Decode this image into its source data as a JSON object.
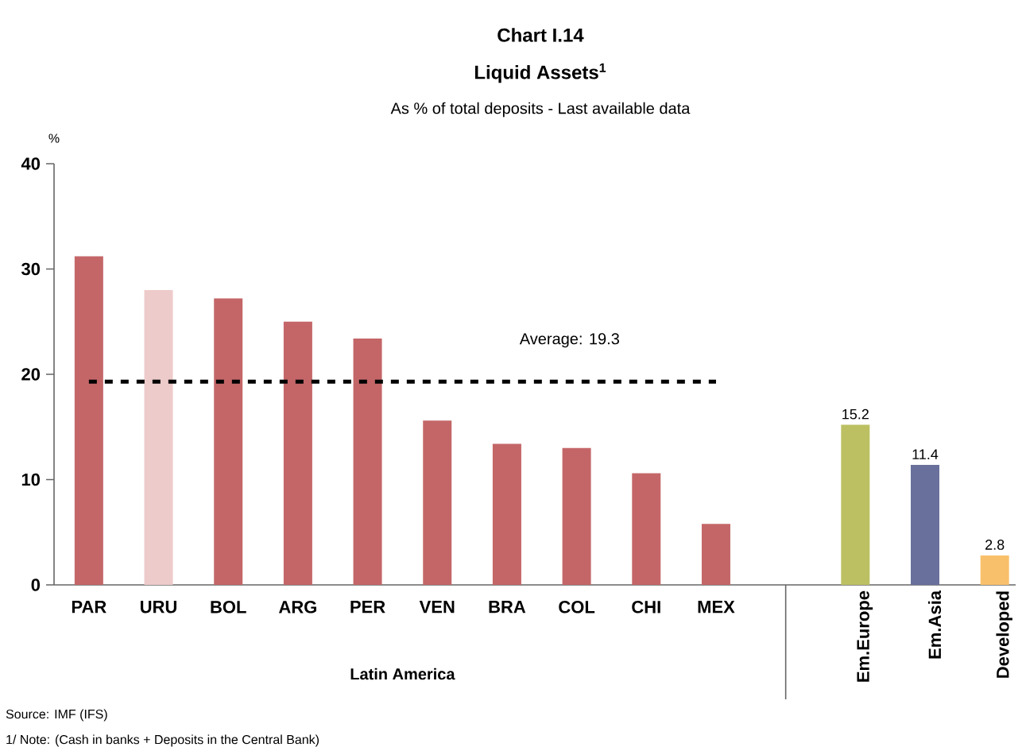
{
  "chart_data": {
    "type": "bar",
    "title": "Chart I.14",
    "subtitle": "Liquid Assets$^{1}$",
    "ylabel": "%",
    "categories": [
      "PAR",
      "URU",
      "BOL",
      "ARG",
      "PER",
      "VEN",
      "BRA",
      "COL",
      "CHI",
      "MEX",
      null,
      "Em.Europe",
      "Em.Asia",
      "Developed"
    ],
    "values": [
      31.2,
      28.0,
      27.2,
      25.0,
      23.4,
      15.6,
      13.4,
      13.0,
      10.6,
      5.8,
      null,
      15.2,
      11.4,
      2.8
    ],
    "colors": [
      "#c46668",
      "#eecbcb",
      "#c46668",
      "#c46668",
      "#c46668",
      "#c46668",
      "#c46668",
      "#c46668",
      "#c46668",
      "#c46668",
      "#c46668",
      "#bcc062",
      "#68709b",
      "#f9c06b"
    ],
    "value_labels": [
      null,
      null,
      null,
      null,
      null,
      null,
      null,
      null,
      null,
      null,
      null,
      "15.2",
      "11.4",
      "2.8"
    ],
    "ylim": [
      0,
      40
    ],
    "yticks": [
      0,
      10,
      20,
      30,
      40
    ],
    "ref_lines": [
      {
        "axis": "y",
        "value": 19.3,
        "label": "Average: 19.3",
        "line_style": "dotted",
        "color": "#000000"
      }
    ],
    "annotations": [
      "As % of total deposits - Last available data",
      "Latin America",
      "Source: IMF (IFS)",
      "1/ Note: (Cash in banks + Deposits in the Central Bank)"
    ]
  }
}
